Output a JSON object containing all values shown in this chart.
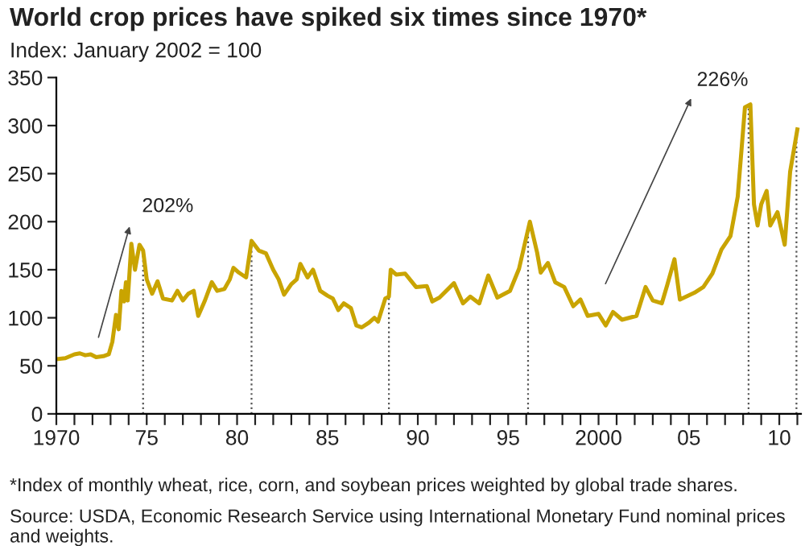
{
  "chart_data": {
    "type": "line",
    "title": "World crop prices have spiked six times since 1970*",
    "subtitle": "Index: January 2002 = 100",
    "x": [
      1970.0,
      1970.5,
      1971.0,
      1971.3,
      1971.6,
      1971.9,
      1972.2,
      1972.6,
      1972.9,
      1973.1,
      1973.3,
      1973.45,
      1973.6,
      1973.75,
      1973.85,
      1973.95,
      1974.15,
      1974.35,
      1974.6,
      1974.8,
      1975.0,
      1975.3,
      1975.6,
      1975.9,
      1976.4,
      1976.7,
      1977.0,
      1977.3,
      1977.6,
      1977.85,
      1978.2,
      1978.6,
      1978.9,
      1979.3,
      1979.6,
      1979.8,
      1980.1,
      1980.5,
      1980.8,
      1981.2,
      1981.6,
      1982.0,
      1982.3,
      1982.6,
      1983.0,
      1983.3,
      1983.5,
      1983.9,
      1984.2,
      1984.6,
      1985.0,
      1985.3,
      1985.6,
      1985.9,
      1986.3,
      1986.6,
      1986.9,
      1987.3,
      1987.6,
      1987.8,
      1988.2,
      1988.4,
      1988.5,
      1988.8,
      1989.3,
      1989.9,
      1990.5,
      1990.8,
      1991.2,
      1992.0,
      1992.5,
      1992.9,
      1993.4,
      1993.9,
      1994.4,
      1995.1,
      1995.6,
      1996.2,
      1996.6,
      1996.8,
      1997.2,
      1997.6,
      1998.1,
      1998.6,
      1999.0,
      1999.4,
      2000.0,
      2000.4,
      2000.8,
      2001.3,
      2002.1,
      2002.6,
      2003.0,
      2003.5,
      2003.8,
      2004.2,
      2004.5,
      2005.3,
      2005.8,
      2006.3,
      2006.8,
      2007.3,
      2007.7,
      2008.1,
      2008.4,
      2008.6,
      2008.8,
      2009.0,
      2009.3,
      2009.5,
      2009.9,
      2010.3,
      2010.6,
      2011.0
    ],
    "series": [
      {
        "color": "#c9a400",
        "values": [
          57,
          58,
          62,
          63,
          61,
          62,
          59,
          60,
          62,
          75,
          103,
          88,
          128,
          117,
          137,
          118,
          177,
          150,
          176,
          170,
          140,
          125,
          138,
          120,
          118,
          128,
          118,
          125,
          128,
          102,
          117,
          137,
          128,
          130,
          140,
          152,
          147,
          142,
          180,
          170,
          167,
          150,
          140,
          124,
          135,
          140,
          156,
          142,
          150,
          128,
          123,
          120,
          108,
          115,
          110,
          92,
          90,
          95,
          100,
          96,
          120,
          122,
          150,
          145,
          146,
          132,
          133,
          117,
          121,
          136,
          115,
          122,
          115,
          144,
          121,
          128,
          151,
          200,
          168,
          147,
          157,
          137,
          132,
          112,
          119,
          102,
          104,
          92,
          106,
          98,
          102,
          132,
          118,
          115,
          134,
          161,
          119,
          126,
          132,
          146,
          171,
          185,
          226,
          319,
          322,
          218,
          196,
          218,
          232,
          196,
          210,
          176,
          252,
          296
        ]
      }
    ],
    "xlim": [
      1970,
      2011.2
    ],
    "xticks": [
      {
        "value": 1970,
        "label": "1970"
      },
      {
        "value": 1971,
        "label": null
      },
      {
        "value": 1972,
        "label": null
      },
      {
        "value": 1973,
        "label": null
      },
      {
        "value": 1974,
        "label": null
      },
      {
        "value": 1975,
        "label": "75"
      },
      {
        "value": 1976,
        "label": null
      },
      {
        "value": 1977,
        "label": null
      },
      {
        "value": 1978,
        "label": null
      },
      {
        "value": 1979,
        "label": null
      },
      {
        "value": 1980,
        "label": "80"
      },
      {
        "value": 1981,
        "label": null
      },
      {
        "value": 1982,
        "label": null
      },
      {
        "value": 1983,
        "label": null
      },
      {
        "value": 1984,
        "label": null
      },
      {
        "value": 1985,
        "label": "85"
      },
      {
        "value": 1986,
        "label": null
      },
      {
        "value": 1987,
        "label": null
      },
      {
        "value": 1988,
        "label": null
      },
      {
        "value": 1989,
        "label": null
      },
      {
        "value": 1990,
        "label": "90"
      },
      {
        "value": 1991,
        "label": null
      },
      {
        "value": 1992,
        "label": null
      },
      {
        "value": 1993,
        "label": null
      },
      {
        "value": 1994,
        "label": null
      },
      {
        "value": 1995,
        "label": "95"
      },
      {
        "value": 1996,
        "label": null
      },
      {
        "value": 1997,
        "label": null
      },
      {
        "value": 1998,
        "label": null
      },
      {
        "value": 1999,
        "label": null
      },
      {
        "value": 2000,
        "label": "2000"
      },
      {
        "value": 2001,
        "label": null
      },
      {
        "value": 2002,
        "label": null
      },
      {
        "value": 2003,
        "label": null
      },
      {
        "value": 2004,
        "label": null
      },
      {
        "value": 2005,
        "label": "05"
      },
      {
        "value": 2006,
        "label": null
      },
      {
        "value": 2007,
        "label": null
      },
      {
        "value": 2008,
        "label": null
      },
      {
        "value": 2009,
        "label": null
      },
      {
        "value": 2010,
        "label": "10"
      },
      {
        "value": 2011,
        "label": null
      }
    ],
    "ylim": [
      0,
      350
    ],
    "yticks": [
      0,
      50,
      100,
      150,
      200,
      250,
      300,
      350
    ],
    "grid": false,
    "legend": false,
    "ref_lines": [
      {
        "axis": "x",
        "value": 1974.8,
        "line_style": "dotted"
      },
      {
        "axis": "x",
        "value": 1980.8,
        "line_style": "dotted"
      },
      {
        "axis": "x",
        "value": 1988.4,
        "line_style": "dotted"
      },
      {
        "axis": "x",
        "value": 1996.1,
        "line_style": "dotted"
      },
      {
        "axis": "x",
        "value": 2008.3,
        "line_style": "dotted"
      },
      {
        "axis": "x",
        "value": 2010.95,
        "line_style": "dotted"
      }
    ],
    "annotations": [
      "*Index of monthly wheat, rice, corn, and soybean prices weighted by global trade shares.",
      "Source: USDA, Economic Research Service using International Monetary Fund nominal prices and weights.",
      "202%",
      "226%"
    ]
  }
}
